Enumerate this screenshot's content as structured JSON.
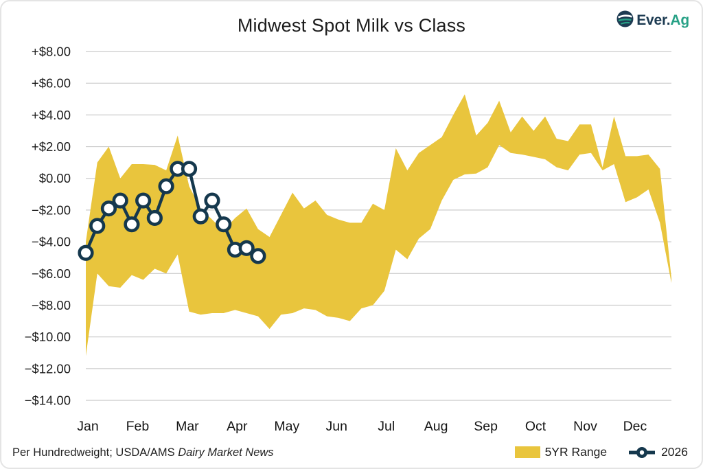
{
  "header": {
    "title": "Midwest Spot Milk vs Class",
    "logo": {
      "brand_primary": "Ever.",
      "brand_secondary": "Ag"
    }
  },
  "footer": {
    "note_regular": "Per Hundredweight; USDA/AMS ",
    "note_italic": "Dairy Market News"
  },
  "colors": {
    "band_yellow": "#E9C53D",
    "line_navy": "#15384D",
    "grid": "#cbcbcb",
    "text": "#1b1b1b",
    "logo_navy": "#1d3b52",
    "logo_teal": "#27a186"
  },
  "chart_data": {
    "type": "area",
    "title": "Midwest Spot Milk vs Class",
    "footnote": "Per Hundredweight; USDA/AMS Dairy Market News",
    "legend_position": "bottom-right",
    "grid": true,
    "weeks": 52,
    "x_tick_labels": [
      "Jan",
      "Feb",
      "Mar",
      "Apr",
      "May",
      "Jun",
      "Jul",
      "Aug",
      "Sep",
      "Oct",
      "Nov",
      "Dec"
    ],
    "y_axis": {
      "min": -14,
      "max": 8,
      "step": 2,
      "unit": "$ per cwt"
    },
    "y_tick_values": [
      8,
      6,
      4,
      2,
      0,
      -2,
      -4,
      -6,
      -8,
      -10,
      -12,
      -14
    ],
    "y_tick_labels": [
      "+$8.00",
      "+$6.00",
      "+$4.00",
      "+$2.00",
      "$0.00",
      "−$2.00",
      "−$4.00",
      "−$6.00",
      "−$8.00",
      "−$10.00",
      "−$12.00",
      "−$14.00"
    ],
    "series": [
      {
        "name": "5YR Range",
        "type": "band",
        "color": "#E9C53D",
        "upper": [
          -4.0,
          1.0,
          2.0,
          0.0,
          0.9,
          0.9,
          0.85,
          0.5,
          2.7,
          -0.5,
          -1.9,
          -2.6,
          -3.3,
          -2.5,
          -1.9,
          -3.2,
          -3.7,
          -2.3,
          -0.9,
          -1.9,
          -1.4,
          -2.3,
          -2.6,
          -2.8,
          -2.8,
          -1.6,
          -2.0,
          1.9,
          0.5,
          1.6,
          2.1,
          2.6,
          4.0,
          5.3,
          2.7,
          3.5,
          4.9,
          2.9,
          3.9,
          3.0,
          3.9,
          2.5,
          2.35,
          3.4,
          3.4,
          0.7,
          3.9,
          1.4,
          1.4,
          1.5,
          0.6,
          -6.3
        ],
        "lower": [
          -11.2,
          -6.0,
          -6.8,
          -6.9,
          -6.1,
          -6.4,
          -5.7,
          -6.0,
          -4.8,
          -8.4,
          -8.6,
          -8.5,
          -8.5,
          -8.3,
          -8.5,
          -8.7,
          -9.5,
          -8.6,
          -8.5,
          -8.2,
          -8.3,
          -8.7,
          -8.8,
          -9.0,
          -8.2,
          -8.0,
          -7.1,
          -4.5,
          -5.1,
          -3.8,
          -3.2,
          -1.4,
          -0.1,
          0.25,
          0.3,
          0.7,
          2.1,
          1.6,
          1.5,
          1.35,
          1.2,
          0.7,
          0.5,
          1.5,
          1.6,
          0.5,
          0.9,
          -1.5,
          -1.2,
          -0.7,
          -2.8,
          -6.6
        ]
      },
      {
        "name": "2026",
        "type": "line",
        "color": "#15384D",
        "marker": "open-circle",
        "start_week": 0,
        "values": [
          -4.7,
          -3.0,
          -1.9,
          -1.4,
          -2.9,
          -1.4,
          -2.5,
          -0.5,
          0.6,
          0.6,
          -2.4,
          -1.4,
          -2.9,
          -4.5,
          -4.4,
          -4.9
        ]
      }
    ]
  }
}
